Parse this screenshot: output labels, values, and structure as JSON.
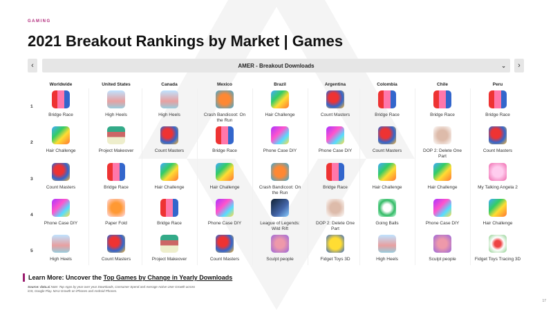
{
  "kicker": "GAMING",
  "title": "2021 Breakout Rankings by Market | Games",
  "dropdown": {
    "label": "AMER - Breakout Downloads",
    "prev": "‹",
    "next": "›",
    "chevron": "⌄"
  },
  "markets": [
    "Worldwide",
    "United States",
    "Canada",
    "Mexico",
    "Brazil",
    "Argentina",
    "Colombia",
    "Chile",
    "Peru"
  ],
  "ranks": [
    "1",
    "2",
    "3",
    "4",
    "5"
  ],
  "rankings": [
    [
      "Bridge Race",
      "Hair Challenge",
      "Count Masters",
      "Phone Case DIY",
      "High Heels"
    ],
    [
      "High Heels",
      "Project Makeover",
      "Bridge Race",
      "Paper Fold",
      "Count Masters"
    ],
    [
      "High Heels",
      "Count Masters",
      "Hair Challenge",
      "Bridge Race",
      "Project Makeover"
    ],
    [
      "Crash Bandicoot: On the Run",
      "Bridge Race",
      "Hair Challenge",
      "Phone Case DIY",
      "Count Masters"
    ],
    [
      "Hair Challenge",
      "Phone Case DIY",
      "Crash Bandicoot: On the Run",
      "League of Legends: Wild Rift",
      "Sculpt people"
    ],
    [
      "Count Masters",
      "Phone Case DIY",
      "Bridge Race",
      "DOP 2: Delete One Part",
      "Fidget Toys 3D"
    ],
    [
      "Bridge Race",
      "Count Masters",
      "Hair Challenge",
      "Going Balls",
      "High Heels"
    ],
    [
      "Bridge Race",
      "DOP 2: Delete One Part",
      "Hair Challenge",
      "Phone Case DIY",
      "Sculpt people"
    ],
    [
      "Bridge Race",
      "Count Masters",
      "My Talking Angela 2",
      "Hair Challenge",
      "Fidget Toys Tracing 3D"
    ]
  ],
  "learn_more": {
    "prefix": "Learn More: Uncover the ",
    "link": "Top Games by Change in Yearly Downloads"
  },
  "source": {
    "label": "Source: data.ai",
    "text": " Note: Top Apps by year over year Downloads, Consumer Spend and Average Active User Growth across iOS, Google Play. MAU Growth on iPhones and Android Phones."
  },
  "page_number": "17",
  "accent_color": "#9b1d6e"
}
